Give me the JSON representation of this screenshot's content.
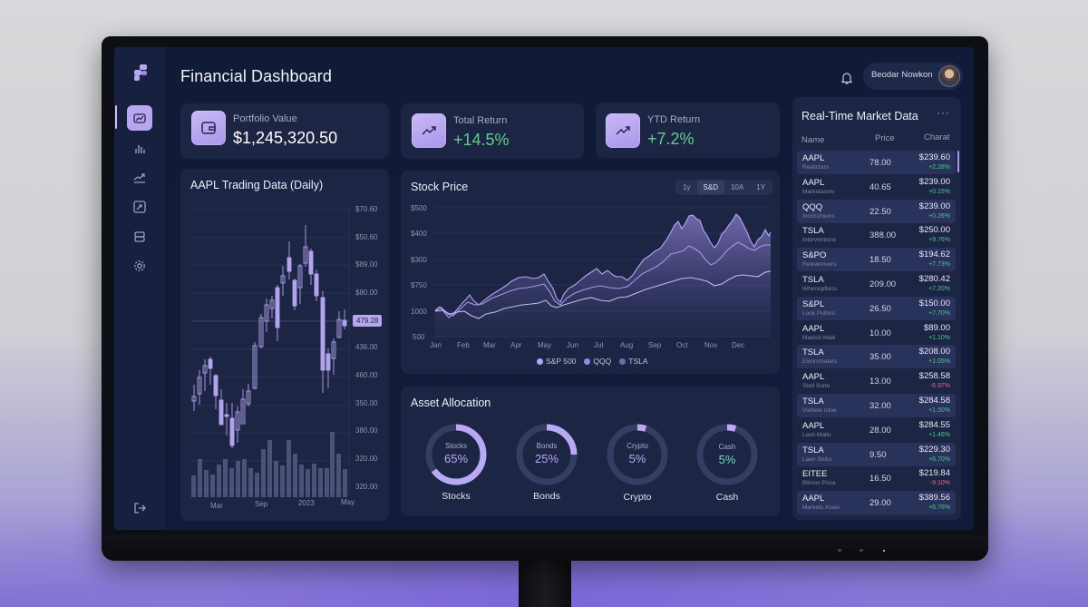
{
  "app": {
    "title": "Financial Dashboard"
  },
  "header": {
    "user_name": "Beodar Nowkon"
  },
  "sidebar": {
    "items": [
      {
        "name": "dashboard",
        "icon": "chart-card-icon",
        "active": true
      },
      {
        "name": "analytics",
        "icon": "bar-chart-icon",
        "active": false
      },
      {
        "name": "trends",
        "icon": "trend-line-icon",
        "active": false
      },
      {
        "name": "reports",
        "icon": "chart-box-icon",
        "active": false
      },
      {
        "name": "wallet",
        "icon": "wallet-icon",
        "active": false
      },
      {
        "name": "settings",
        "icon": "gear-icon",
        "active": false
      }
    ],
    "logout_icon": "logout-icon"
  },
  "stats": [
    {
      "label": "Portfolio Value",
      "value": "$1,245,320.50",
      "icon": "wallet-icon",
      "color": "#ffffff"
    },
    {
      "label": "Total Return",
      "value": "+14.5%",
      "icon": "trend-up-icon",
      "color": "#5fcf87"
    },
    {
      "label": "YTD Return",
      "value": "+7.2%",
      "icon": "trend-up-icon",
      "color": "#5fcf87"
    }
  ],
  "candles": {
    "title": "AAPL Trading Data (Daily)",
    "y_labels": [
      "$70.60",
      "$50.60",
      "$89.00",
      "$80.00",
      "436.00",
      "460.00",
      "350.00",
      "380.00",
      "320.00",
      "320.00"
    ],
    "current_price": "479.28",
    "x_labels": [
      "Mar",
      "Sep",
      "2023",
      "May"
    ]
  },
  "stock_price": {
    "title": "Stock Price",
    "ranges": [
      "1y",
      "S&D",
      "10A",
      "1Y"
    ],
    "active_range": "S&D",
    "y_labels": [
      "$500",
      "$400",
      "$300",
      "$750",
      "1000",
      "500"
    ],
    "x_labels": [
      "Jan",
      "Feb",
      "Mar",
      "Apr",
      "May",
      "Jun",
      "Jul",
      "Aug",
      "Sep",
      "Oct",
      "Nov",
      "Dec"
    ],
    "legend": [
      {
        "name": "S&P 500",
        "color": "#b8a6f4"
      },
      {
        "name": "QQQ",
        "color": "#9b88e6"
      },
      {
        "name": "TSLA",
        "color": "#7466b0"
      }
    ]
  },
  "allocation": {
    "title": "Asset Allocation",
    "items": [
      {
        "label": "Stocks",
        "value": "65%",
        "pct": 65,
        "value_color": "#b9a9f2"
      },
      {
        "label": "Bonds",
        "value": "25%",
        "pct": 25,
        "value_color": "#b9a9f2"
      },
      {
        "label": "Crypto",
        "value": "5%",
        "pct": 5,
        "value_color": "#b9a9f2"
      },
      {
        "label": "Cash",
        "value": "5%",
        "pct": 5,
        "value_color": "#6fd8c0"
      }
    ]
  },
  "market": {
    "title": "Real-Time Market Data",
    "menu_icon": "more-icon",
    "columns": [
      "Name",
      "Price",
      "Charat"
    ],
    "rows": [
      {
        "symbol": "AAPL",
        "sub": "Realictars",
        "price": "78.00",
        "value": "$239.60",
        "change": "+2.28%",
        "dir": "pos"
      },
      {
        "symbol": "AAPL",
        "sub": "Marketasntv",
        "price": "40.65",
        "value": "$239.00",
        "change": "+0.15%",
        "dir": "pos"
      },
      {
        "symbol": "QQQ",
        "sub": "Incimiznions",
        "price": "22.50",
        "value": "$239.00",
        "change": "+0.26%",
        "dir": "pos"
      },
      {
        "symbol": "TSLA",
        "sub": "Interventions",
        "price": "388.00",
        "value": "$250.00",
        "change": "+9.76%",
        "dir": "pos"
      },
      {
        "symbol": "S&PO",
        "sub": "Relewonvers",
        "price": "18.50",
        "value": "$194.62",
        "change": "+7.73%",
        "dir": "pos"
      },
      {
        "symbol": "TSLA",
        "sub": "Whenopflens",
        "price": "209.00",
        "value": "$280.42",
        "change": "+7.20%",
        "dir": "pos"
      },
      {
        "symbol": "S&PL",
        "sub": "Look Pullors",
        "price": "26.50",
        "value": "$150.00",
        "change": "+7.70%",
        "dir": "pos"
      },
      {
        "symbol": "AAPL",
        "sub": "Madisb Malk",
        "price": "10.00",
        "value": "$89.00",
        "change": "+1.10%",
        "dir": "pos"
      },
      {
        "symbol": "TSLA",
        "sub": "Elonrcmaters",
        "price": "35.00",
        "value": "$208.00",
        "change": "+1.05%",
        "dir": "pos"
      },
      {
        "symbol": "AAPL",
        "sub": "Sbdl Sorte",
        "price": "13.00",
        "value": "$258.58",
        "change": "-6.97%",
        "dir": "neg"
      },
      {
        "symbol": "TSLA",
        "sub": "Viohete Isloe",
        "price": "32.00",
        "value": "$284.58",
        "change": "+1.50%",
        "dir": "pos"
      },
      {
        "symbol": "AAPL",
        "sub": "Lash Mallo",
        "price": "28.00",
        "value": "$284.55",
        "change": "+1.46%",
        "dir": "pos"
      },
      {
        "symbol": "TSLA",
        "sub": "Laen Stoks",
        "price": "9.50",
        "value": "$229.30",
        "change": "+6.70%",
        "dir": "pos"
      },
      {
        "symbol": "EITEE",
        "sub": "Blimon Prica",
        "price": "16.50",
        "value": "$219.84",
        "change": "-9.10%",
        "dir": "neg"
      },
      {
        "symbol": "AAPL",
        "sub": "Markets Xioes",
        "price": "29.00",
        "value": "$389.56",
        "change": "+6.76%",
        "dir": "pos"
      }
    ]
  },
  "theme": {
    "accent": "#b7a6f0",
    "positive": "#4fc58b",
    "negative": "#e06880",
    "card": "#1c2544",
    "screen": "#111a36"
  }
}
